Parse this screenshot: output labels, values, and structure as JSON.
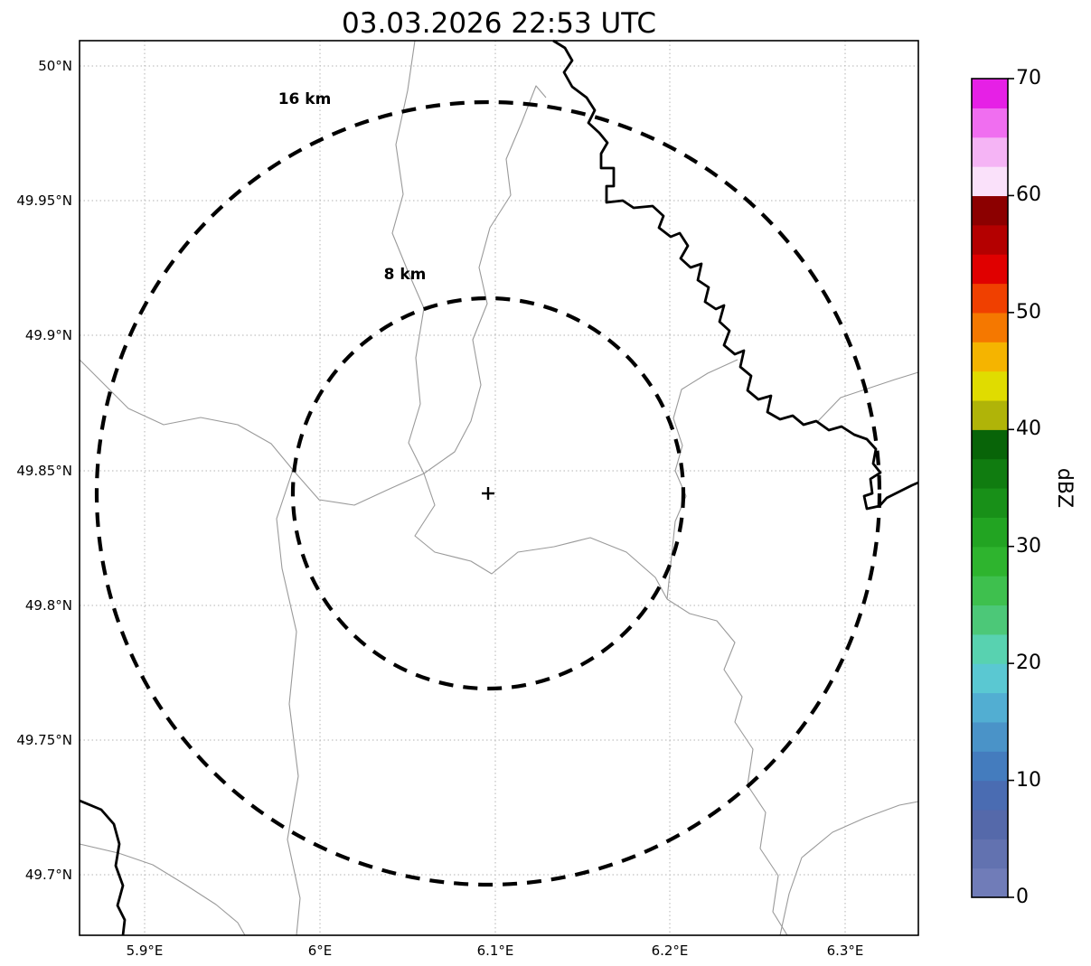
{
  "title": "03.03.2026 22:53 UTC",
  "map": {
    "center_marker": "+",
    "range_rings": [
      {
        "id": "16km",
        "label": "16 km"
      },
      {
        "id": "8km",
        "label": "8 km"
      }
    ]
  },
  "axes": {
    "lat_ticks": [
      "50°N",
      "49.95°N",
      "49.9°N",
      "49.85°N",
      "49.8°N",
      "49.75°N",
      "49.7°N"
    ],
    "lon_ticks": [
      "5.9°E",
      "6°E",
      "6.1°E",
      "6.2°E",
      "6.3°E"
    ]
  },
  "colorbar": {
    "label": "dBZ",
    "min": 0,
    "max": 70,
    "ticks": [
      "70",
      "60",
      "50",
      "40",
      "30",
      "20",
      "10",
      "0"
    ],
    "stops": [
      {
        "from": 0,
        "to": 2.5,
        "color": "#707cb8"
      },
      {
        "from": 2.5,
        "to": 5,
        "color": "#6272b0"
      },
      {
        "from": 5,
        "to": 7.5,
        "color": "#5569aa"
      },
      {
        "from": 7.5,
        "to": 10,
        "color": "#4a6cb2"
      },
      {
        "from": 10,
        "to": 12.5,
        "color": "#447cbe"
      },
      {
        "from": 12.5,
        "to": 15,
        "color": "#4a93c8"
      },
      {
        "from": 15,
        "to": 17.5,
        "color": "#52aed2"
      },
      {
        "from": 17.5,
        "to": 20,
        "color": "#5ac8d2"
      },
      {
        "from": 20,
        "to": 22.5,
        "color": "#58d2b0"
      },
      {
        "from": 22.5,
        "to": 25,
        "color": "#4cc878"
      },
      {
        "from": 25,
        "to": 27.5,
        "color": "#3ec04e"
      },
      {
        "from": 27.5,
        "to": 30,
        "color": "#2eb42e"
      },
      {
        "from": 30,
        "to": 32.5,
        "color": "#22a422"
      },
      {
        "from": 32.5,
        "to": 35,
        "color": "#189018"
      },
      {
        "from": 35,
        "to": 37.5,
        "color": "#107c10"
      },
      {
        "from": 37.5,
        "to": 40,
        "color": "#086408"
      },
      {
        "from": 40,
        "to": 42.5,
        "color": "#b0b408"
      },
      {
        "from": 42.5,
        "to": 45,
        "color": "#e0dc00"
      },
      {
        "from": 45,
        "to": 47.5,
        "color": "#f5b400"
      },
      {
        "from": 47.5,
        "to": 50,
        "color": "#f57800"
      },
      {
        "from": 50,
        "to": 52.5,
        "color": "#f04000"
      },
      {
        "from": 52.5,
        "to": 55,
        "color": "#e00000"
      },
      {
        "from": 55,
        "to": 57.5,
        "color": "#b40000"
      },
      {
        "from": 57.5,
        "to": 60,
        "color": "#8c0000"
      },
      {
        "from": 60,
        "to": 62.5,
        "color": "#fae1fa"
      },
      {
        "from": 62.5,
        "to": 65,
        "color": "#f5b4f5"
      },
      {
        "from": 65,
        "to": 67.5,
        "color": "#f06ef0"
      },
      {
        "from": 67.5,
        "to": 70,
        "color": "#e620e6"
      }
    ]
  }
}
